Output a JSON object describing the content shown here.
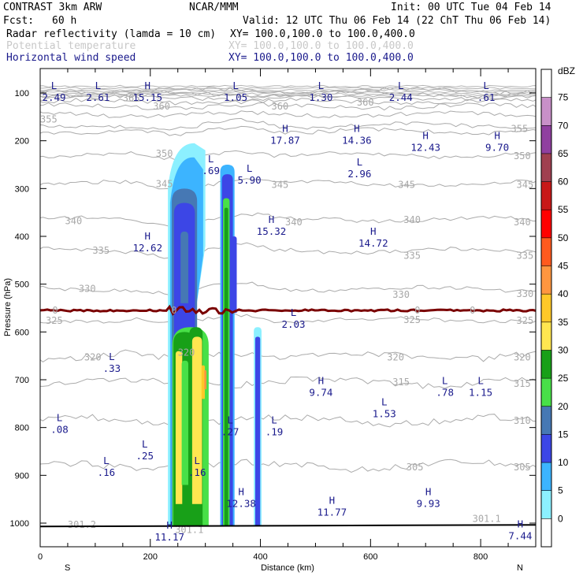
{
  "header": {
    "model": "CONTRAST  3km ARW",
    "org": "NCAR/MMM",
    "init": "Init: 00 UTC Tue 04 Feb 14",
    "fcst_label": "Fcst:",
    "fcst_value": "60 h",
    "valid": "Valid: 12 UTC Thu 06 Feb 14 (22 ChT Thu 06 Feb 14)",
    "fields": [
      {
        "name": "Radar reflectivity (lamda = 10 cm)",
        "xy": "XY= 100.0,100.0 to 100.0,400.0",
        "color": "#000000"
      },
      {
        "name": "Potential temperature",
        "xy": "XY= 100.0,100.0 to 100.0,400.0",
        "color": "#c8c8c8"
      },
      {
        "name": "Horizontal wind speed",
        "xy": "XY= 100.0,100.0 to 100.0,400.0",
        "color": "#1a1a8c"
      }
    ]
  },
  "chart_data": {
    "type": "cross-section",
    "xlabel": "Distance (km)",
    "ylabel": "Pressure (hPa)",
    "xlim": [
      0,
      900
    ],
    "ylim": [
      1050,
      80
    ],
    "x_ticks": [
      "0",
      "200",
      "400",
      "600",
      "800"
    ],
    "y_ticks": [
      "100",
      "200",
      "300",
      "400",
      "500",
      "600",
      "700",
      "800",
      "900",
      "1000"
    ],
    "endpoints": {
      "left": "S",
      "right": "N"
    },
    "colorbar": {
      "unit": "dBZ",
      "levels": [
        "75",
        "70",
        "65",
        "60",
        "55",
        "50",
        "45",
        "40",
        "35",
        "30",
        "25",
        "20",
        "15",
        "10",
        "5",
        "0"
      ],
      "colors": [
        "#ffffff",
        "#c890c8",
        "#9040a0",
        "#a04050",
        "#c81818",
        "#ff0000",
        "#ff5a1e",
        "#ff9640",
        "#ffc828",
        "#ffe650",
        "#18a018",
        "#48e048",
        "#4678b4",
        "#3c46e6",
        "#3cb4ff",
        "#8cf0ff",
        "#ffffff"
      ]
    },
    "theta_labels": [
      {
        "text": "365",
        "x": 150,
        "p": 111
      },
      {
        "text": "360",
        "x": 205,
        "p": 128
      },
      {
        "text": "360",
        "x": 420,
        "p": 128
      },
      {
        "text": "360",
        "x": 575,
        "p": 120
      },
      {
        "text": "355",
        "x": 0,
        "p": 155
      },
      {
        "text": "355",
        "x": 855,
        "p": 175
      },
      {
        "text": "350",
        "x": 210,
        "p": 227
      },
      {
        "text": "350",
        "x": 860,
        "p": 232
      },
      {
        "text": "345",
        "x": 210,
        "p": 290
      },
      {
        "text": "345",
        "x": 420,
        "p": 292
      },
      {
        "text": "345",
        "x": 650,
        "p": 292
      },
      {
        "text": "345",
        "x": 865,
        "p": 292
      },
      {
        "text": "340",
        "x": 45,
        "p": 368
      },
      {
        "text": "340",
        "x": 445,
        "p": 370
      },
      {
        "text": "340",
        "x": 660,
        "p": 365
      },
      {
        "text": "340",
        "x": 860,
        "p": 370
      },
      {
        "text": "335",
        "x": 95,
        "p": 430
      },
      {
        "text": "335",
        "x": 660,
        "p": 440
      },
      {
        "text": "335",
        "x": 865,
        "p": 440
      },
      {
        "text": "330",
        "x": 70,
        "p": 510
      },
      {
        "text": "330",
        "x": 640,
        "p": 522
      },
      {
        "text": "330",
        "x": 865,
        "p": 520
      },
      {
        "text": "325",
        "x": 10,
        "p": 576
      },
      {
        "text": "325",
        "x": 660,
        "p": 575
      },
      {
        "text": "325",
        "x": 865,
        "p": 576
      },
      {
        "text": "320",
        "x": 80,
        "p": 653
      },
      {
        "text": "320",
        "x": 250,
        "p": 643
      },
      {
        "text": "320",
        "x": 630,
        "p": 653
      },
      {
        "text": "320",
        "x": 860,
        "p": 653
      },
      {
        "text": "315",
        "x": 640,
        "p": 705
      },
      {
        "text": "315",
        "x": 860,
        "p": 708
      },
      {
        "text": "310",
        "x": 860,
        "p": 786
      },
      {
        "text": "305",
        "x": 665,
        "p": 883
      },
      {
        "text": "305",
        "x": 860,
        "p": 883
      },
      {
        "text": "301.2",
        "x": 50,
        "p": 1003
      },
      {
        "text": "301.1",
        "x": 785,
        "p": 991
      },
      {
        "text": "301.1",
        "x": 245,
        "p": 1014
      }
    ],
    "wind_extrema": [
      {
        "type": "L",
        "value": "2.49",
        "x": 25,
        "p": 95
      },
      {
        "type": "L",
        "value": "2.61",
        "x": 105,
        "p": 95
      },
      {
        "type": "H",
        "value": "15.15",
        "x": 195,
        "p": 95
      },
      {
        "type": "L",
        "value": "1.05",
        "x": 355,
        "p": 95
      },
      {
        "type": "L",
        "value": "1.30",
        "x": 510,
        "p": 95
      },
      {
        "type": "L",
        "value": "2.44",
        "x": 655,
        "p": 95
      },
      {
        "type": "L",
        "value": ".61",
        "x": 810,
        "p": 95
      },
      {
        "type": "H",
        "value": "17.87",
        "x": 445,
        "p": 185
      },
      {
        "type": "H",
        "value": "14.36",
        "x": 575,
        "p": 185
      },
      {
        "type": "H",
        "value": "12.43",
        "x": 700,
        "p": 200
      },
      {
        "type": "H",
        "value": "9.70",
        "x": 830,
        "p": 200
      },
      {
        "type": "L",
        "value": ".69",
        "x": 310,
        "p": 248
      },
      {
        "type": "L",
        "value": "5.90",
        "x": 380,
        "p": 268
      },
      {
        "type": "L",
        "value": "2.96",
        "x": 580,
        "p": 255
      },
      {
        "type": "H",
        "value": "15.32",
        "x": 420,
        "p": 375
      },
      {
        "type": "H",
        "value": "14.72",
        "x": 605,
        "p": 400
      },
      {
        "type": "H",
        "value": "12.62",
        "x": 195,
        "p": 410
      },
      {
        "type": "L",
        "value": "2.03",
        "x": 460,
        "p": 570
      },
      {
        "type": "L",
        "value": ".33",
        "x": 130,
        "p": 662
      },
      {
        "type": "H",
        "value": "9.74",
        "x": 510,
        "p": 712
      },
      {
        "type": "L",
        "value": ".78",
        "x": 735,
        "p": 712
      },
      {
        "type": "L",
        "value": "1.15",
        "x": 800,
        "p": 712
      },
      {
        "type": "L",
        "value": "1.53",
        "x": 625,
        "p": 757
      },
      {
        "type": "L",
        "value": ".08",
        "x": 35,
        "p": 790
      },
      {
        "type": "L",
        "value": ".27",
        "x": 345,
        "p": 795
      },
      {
        "type": "L",
        "value": ".19",
        "x": 425,
        "p": 795
      },
      {
        "type": "L",
        "value": ".25",
        "x": 190,
        "p": 845
      },
      {
        "type": "L",
        "value": ".16",
        "x": 120,
        "p": 880
      },
      {
        "type": "L",
        "value": ".16",
        "x": 285,
        "p": 880
      },
      {
        "type": "H",
        "value": "12.38",
        "x": 365,
        "p": 945
      },
      {
        "type": "H",
        "value": "11.77",
        "x": 530,
        "p": 963
      },
      {
        "type": "H",
        "value": "9.93",
        "x": 705,
        "p": 945
      },
      {
        "type": "H",
        "value": "11.17",
        "x": 235,
        "p": 1015
      },
      {
        "type": "H",
        "value": "7.44",
        "x": 872,
        "p": 1012
      }
    ],
    "zero_isotherm_label": "0",
    "freezing_level_p": 555,
    "surface_p": 1007
  }
}
